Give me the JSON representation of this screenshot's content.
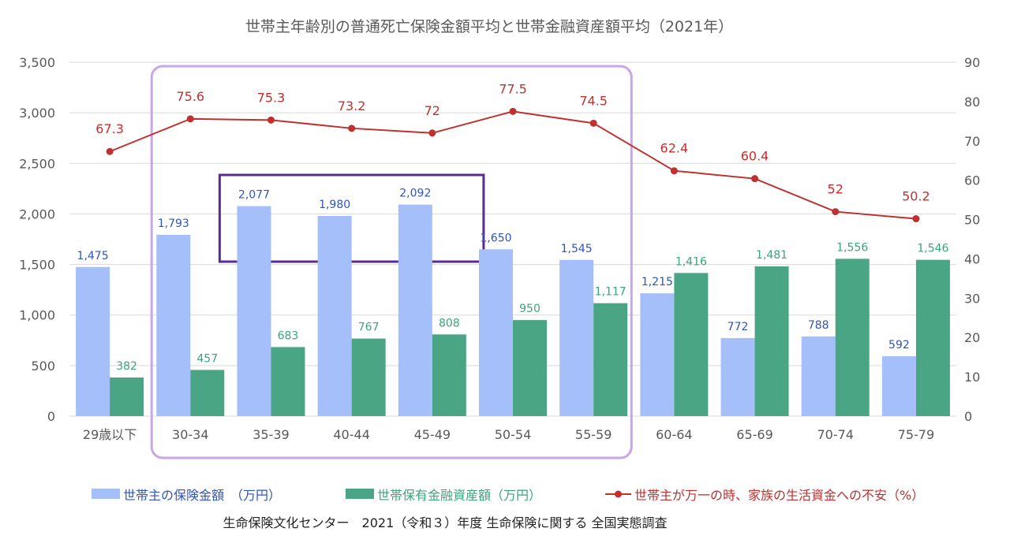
{
  "chart_data": {
    "type": "bar",
    "title": "世帯主年齢別の普通死亡保険金額平均と世帯金融資産額平均（2021年）",
    "categories": [
      "29歳以下",
      "30-34",
      "35-39",
      "40-44",
      "45-49",
      "50-54",
      "55-59",
      "60-64",
      "65-69",
      "70-74",
      "75-79"
    ],
    "series": [
      {
        "name": "世帯主の保険金額　（万円）",
        "kind": "bar",
        "axis": "left",
        "color": "#a4bff9",
        "values": [
          1475,
          1793,
          2077,
          1980,
          2092,
          1650,
          1545,
          1215,
          772,
          788,
          592
        ],
        "labels": [
          "1,475",
          "1,793",
          "2,077",
          "1,980",
          "2,092",
          "1,650",
          "1,545",
          "1,215",
          "772",
          "788",
          "592"
        ]
      },
      {
        "name": "世帯保有金融資産額（万円）",
        "kind": "bar",
        "axis": "left",
        "color": "#4aa585",
        "values": [
          382,
          457,
          683,
          767,
          808,
          950,
          1117,
          1416,
          1481,
          1556,
          1546
        ],
        "labels": [
          "382",
          "457",
          "683",
          "767",
          "808",
          "950",
          "1,117",
          "1,416",
          "1,481",
          "1,556",
          "1,546"
        ]
      },
      {
        "name": "世帯主が万一の時、家族の生活資金への不安（%）",
        "kind": "line",
        "axis": "right",
        "color": "#c0302e",
        "values": [
          67.3,
          75.6,
          75.3,
          73.2,
          72,
          77.5,
          74.5,
          62.4,
          60.4,
          52,
          50.2
        ],
        "labels": [
          "67.3",
          "75.6",
          "75.3",
          "73.2",
          "72",
          "77.5",
          "74.5",
          "62.4",
          "60.4",
          "52",
          "50.2"
        ]
      }
    ],
    "left_axis": {
      "ylim": [
        0,
        3500
      ],
      "ticks": [
        "0",
        "500",
        "1,000",
        "1,500",
        "2,000",
        "2,500",
        "3,000",
        "3,500"
      ]
    },
    "right_axis": {
      "ylim": [
        0,
        90
      ],
      "ticks": [
        "0",
        "10",
        "20",
        "30",
        "40",
        "50",
        "60",
        "70",
        "80",
        "90"
      ]
    },
    "grid": true,
    "legend": "bottom",
    "highlight_outer": {
      "from": "30-34",
      "to": "55-59",
      "color": "#c9a6e9"
    },
    "highlight_inner": {
      "from": "35-39",
      "to": "45-49",
      "color": "#5b2c8f"
    },
    "source": "生命保険文化センター　2021（令和３）年度 生命保険に関する 全国実態調査"
  }
}
